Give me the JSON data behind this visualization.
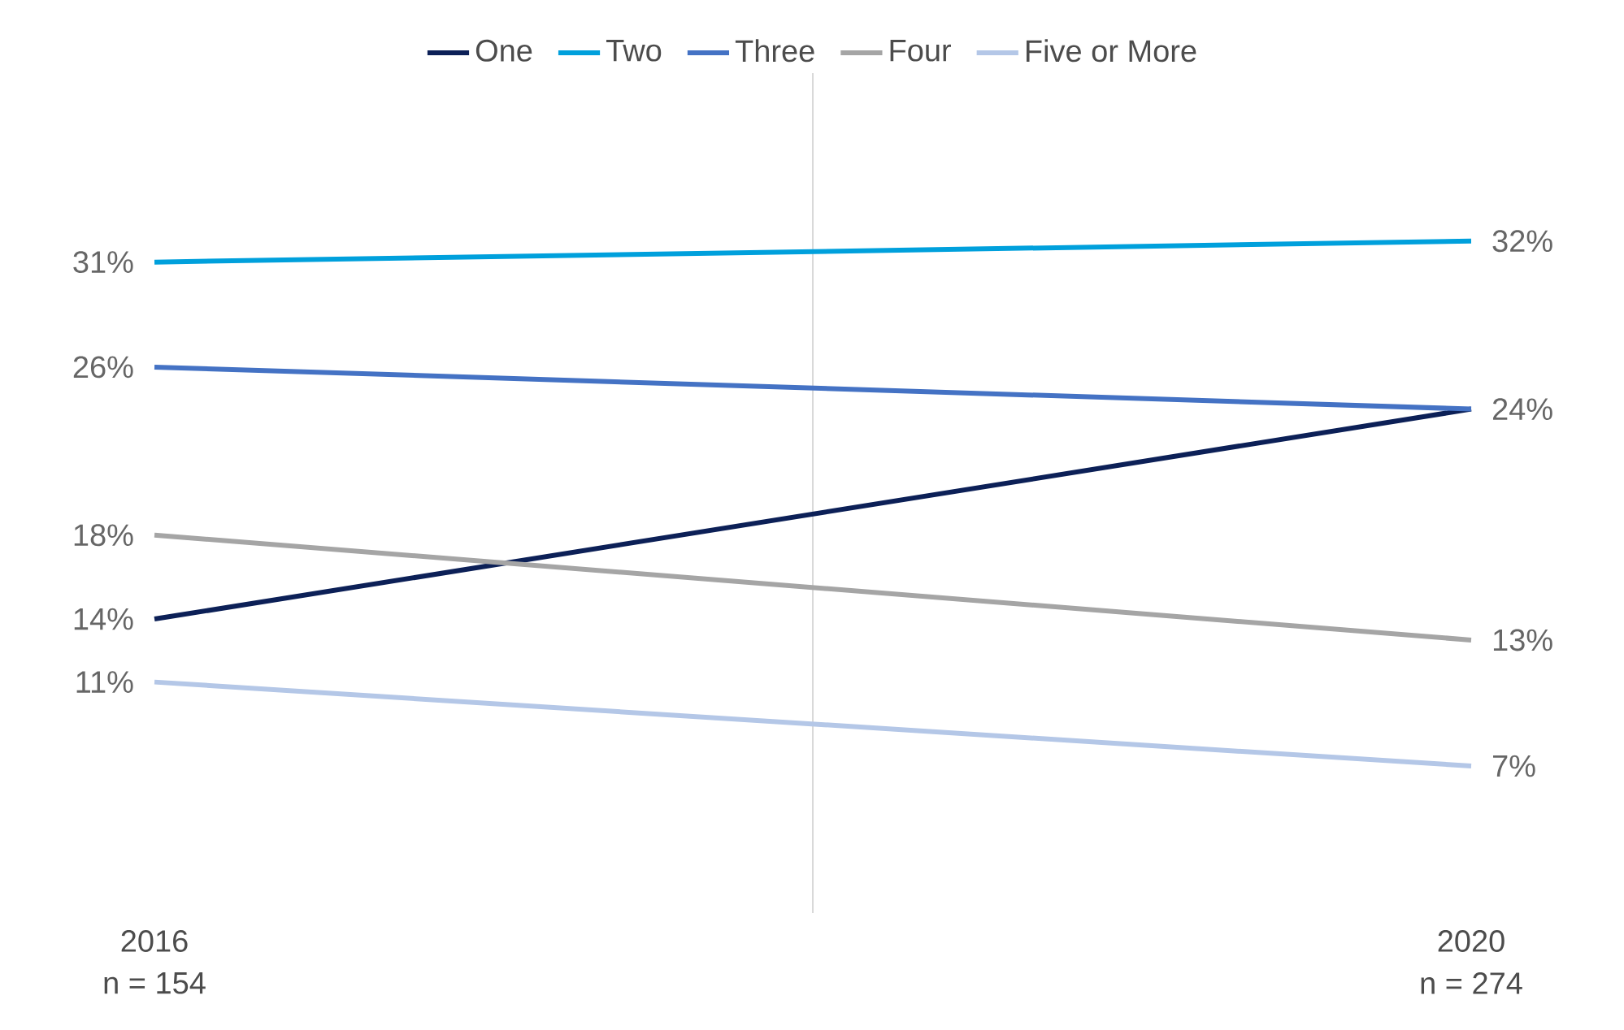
{
  "chart_data": {
    "type": "line",
    "x": [
      2016,
      2020
    ],
    "xlim": [
      2016,
      2020
    ],
    "xticks": [
      2016,
      2020
    ],
    "ylim": [
      0,
      40
    ],
    "tick_labels": "x",
    "legend": "top",
    "grid": false,
    "line_style": "solid",
    "annotations": [
      "n = 154",
      "n = 274"
    ],
    "ref_lines": [
      {
        "axis": "x",
        "value": 2018,
        "color": "#d0d0d0"
      }
    ],
    "series": [
      {
        "name": "One",
        "color": "#0c2057",
        "values": [
          14,
          24
        ],
        "value_labels": [
          "14%",
          "24%"
        ]
      },
      {
        "name": "Two",
        "color": "#00a0dc",
        "values": [
          31,
          32
        ],
        "value_labels": [
          "31%",
          "32%"
        ]
      },
      {
        "name": "Three",
        "color": "#4472c4",
        "values": [
          26,
          24
        ],
        "value_labels": [
          "26%",
          null
        ]
      },
      {
        "name": "Four",
        "color": "#a5a5a5",
        "values": [
          18,
          13
        ],
        "value_labels": [
          "18%",
          "13%"
        ]
      },
      {
        "name": "Five or More",
        "color": "#b4c7e7",
        "values": [
          11,
          7
        ],
        "value_labels": [
          "11%",
          "7%"
        ]
      }
    ]
  }
}
